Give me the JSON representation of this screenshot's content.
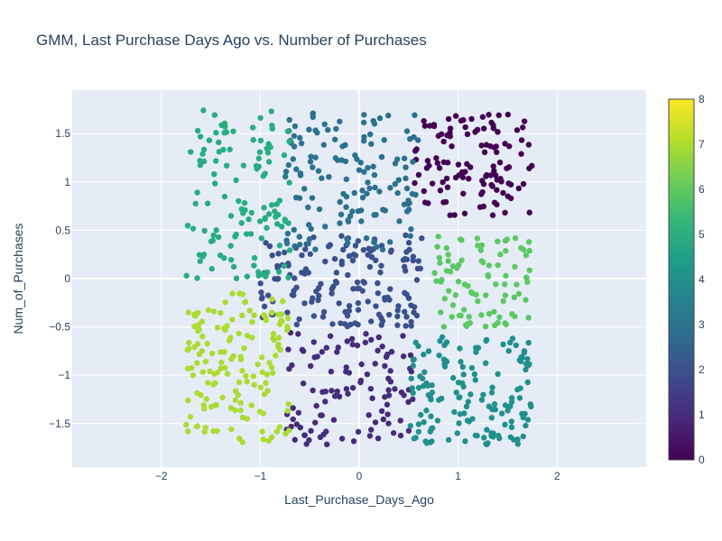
{
  "chart_data": {
    "type": "scatter",
    "title": "GMM, Last Purchase Days Ago vs. Number of Purchases",
    "xlabel": "Last_Purchase_Days_Ago",
    "ylabel": "Num_of_Purchases",
    "xlim": [
      -2.9,
      2.9
    ],
    "ylim": [
      -1.95,
      1.95
    ],
    "xticks": [
      -2,
      -1,
      0,
      1,
      2
    ],
    "xtick_labels": [
      "−2",
      "−1",
      "0",
      "1",
      "2"
    ],
    "yticks": [
      -1.5,
      -1,
      -0.5,
      0,
      0.5,
      1,
      1.5
    ],
    "ytick_labels": [
      "−1.5",
      "−1",
      "−0.5",
      "0",
      "0.5",
      "1",
      "1.5"
    ],
    "grid": true,
    "colorscale": "viridis",
    "colorbar": {
      "range": [
        0,
        8
      ],
      "ticks": [
        0,
        1,
        2,
        3,
        4,
        5,
        6,
        7,
        8
      ],
      "tick_labels": [
        "0",
        "1",
        "2",
        "3",
        "4",
        "5",
        "6",
        "7",
        "8"
      ]
    },
    "cluster_colors": {
      "0": "#440154",
      "1": "#472c7a",
      "2": "#3b518b",
      "3": "#2c718e",
      "4": "#21908d",
      "5": "#27ad81",
      "6": "#5cc863",
      "7": "#aadc32",
      "8": "#fde725"
    },
    "clusters": [
      {
        "label": 0,
        "color_value": 0,
        "x_range": [
          0.55,
          1.75
        ],
        "y_range": [
          0.65,
          1.7
        ]
      },
      {
        "label": 1,
        "color_value": 1,
        "x_range": [
          -0.75,
          0.55
        ],
        "y_range": [
          -1.72,
          -0.55
        ]
      },
      {
        "label": 2,
        "color_value": 2,
        "x_range": [
          -1.0,
          0.65
        ],
        "y_range": [
          -0.5,
          0.45
        ]
      },
      {
        "label": 3,
        "color_value": 3.4,
        "x_range": [
          -0.75,
          0.6
        ],
        "y_range": [
          0.3,
          1.75
        ]
      },
      {
        "label": 4,
        "color_value": 4.7,
        "x_range": [
          0.5,
          1.75
        ],
        "y_range": [
          -1.72,
          -0.6
        ]
      },
      {
        "label": 5,
        "color_value": 6,
        "x_range": [
          -1.75,
          -0.7
        ],
        "y_range": [
          0.0,
          1.75
        ]
      },
      {
        "label": 6,
        "color_value": 7,
        "x_range": [
          0.75,
          1.75
        ],
        "y_range": [
          -0.5,
          0.45
        ]
      },
      {
        "label": 7,
        "color_value": 8,
        "x_range": [
          -1.75,
          -0.7
        ],
        "y_range": [
          -1.72,
          -0.15
        ]
      }
    ],
    "points_per_cluster": [
      120,
      110,
      160,
      140,
      150,
      120,
      90,
      150
    ]
  }
}
